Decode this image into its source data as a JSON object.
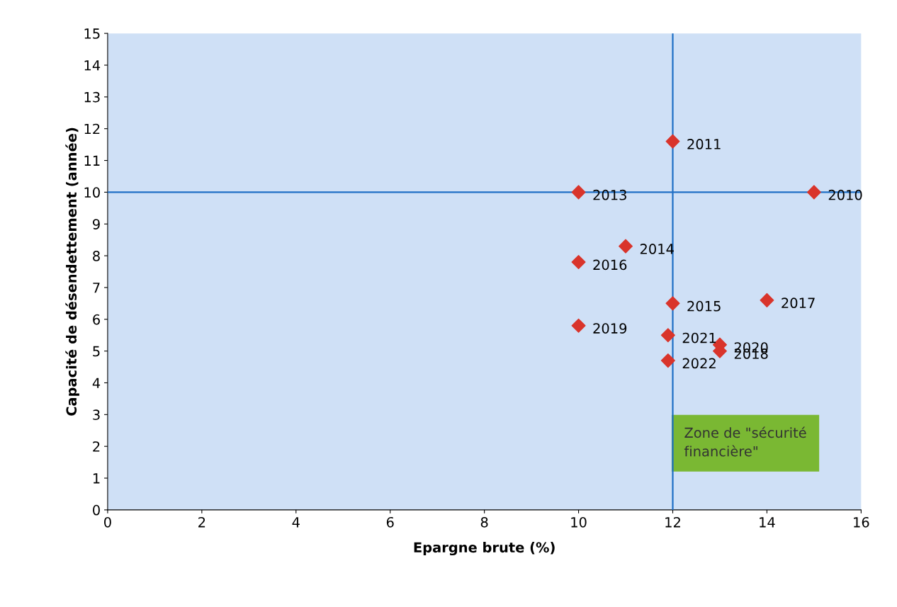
{
  "chart_data": {
    "type": "scatter",
    "xlabel": "Epargne brute (%)",
    "ylabel": "Capacité de désendettement (année)",
    "x": [
      15,
      12,
      10,
      11,
      10,
      12,
      14,
      13,
      10,
      13,
      11.9,
      11.9
    ],
    "values": [
      10.0,
      11.6,
      10.0,
      8.3,
      7.8,
      6.5,
      6.6,
      5.0,
      5.8,
      5.2,
      5.5,
      4.7
    ],
    "color": "#d9342b",
    "marker": "diamond",
    "grid": false,
    "legend": false,
    "xlim": [
      0,
      16
    ],
    "xticks": [
      0,
      2,
      4,
      6,
      8,
      10,
      12,
      14,
      16
    ],
    "ylim": [
      0,
      15
    ],
    "yticks": [
      0,
      1,
      2,
      3,
      4,
      5,
      6,
      7,
      8,
      9,
      10,
      11,
      12,
      13,
      14,
      15
    ],
    "ref_lines": [
      {
        "axis": "x",
        "value": 12,
        "color": "#1f6fc5"
      },
      {
        "axis": "y",
        "value": 10,
        "color": "#1f6fc5"
      }
    ],
    "annotations": [
      {
        "text": "2010",
        "x": 15,
        "y": 10.0
      },
      {
        "text": "2011",
        "x": 12,
        "y": 11.6
      },
      {
        "text": "2013",
        "x": 10,
        "y": 10.0
      },
      {
        "text": "2014",
        "x": 11,
        "y": 8.3
      },
      {
        "text": "2016",
        "x": 10,
        "y": 7.8
      },
      {
        "text": "2015",
        "x": 12,
        "y": 6.5
      },
      {
        "text": "2017",
        "x": 14,
        "y": 6.6
      },
      {
        "text": "2018",
        "x": 13,
        "y": 5.0
      },
      {
        "text": "2019",
        "x": 10,
        "y": 5.8
      },
      {
        "text": "2020",
        "x": 13,
        "y": 5.2
      },
      {
        "text": "2021",
        "x": 11.9,
        "y": 5.5
      },
      {
        "text": "2022",
        "x": 11.9,
        "y": 4.7
      },
      "Zone de \"sécurité\nfinancière\""
    ]
  }
}
